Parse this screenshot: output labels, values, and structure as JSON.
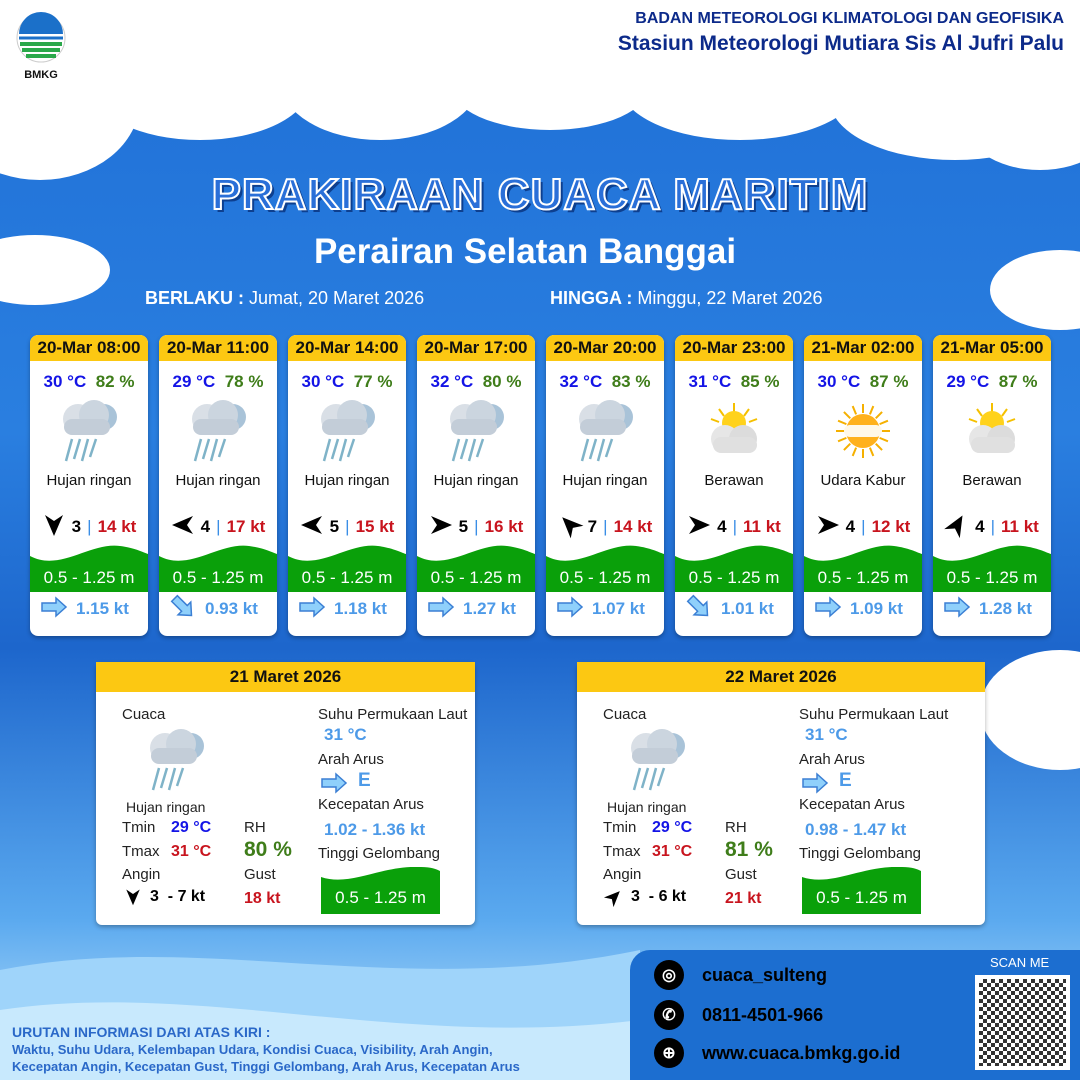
{
  "org": {
    "logo_text": "BMKG",
    "line1": "BADAN METEOROLOGI KLIMATOLOGI DAN GEOFISIKA",
    "line2": "Stasiun Meteorologi Mutiara Sis Al Jufri Palu"
  },
  "title": "PRAKIRAAN CUACA MARITIM",
  "subtitle": "Perairan Selatan Banggai",
  "validity": {
    "from_label": "BERLAKU :",
    "from": "Jumat, 20 Maret 2026",
    "to_label": "HINGGA :",
    "to": "Minggu, 22 Maret 2026"
  },
  "forecasts": [
    {
      "time": "20-Mar 08:00",
      "temp": "30 °C",
      "rh": "82 %",
      "icon": "rain-icon",
      "cond": "Hujan ringan",
      "wind_dir_deg": 180,
      "wind": "3",
      "gust": "14 kt",
      "wave": "0.5 - 1.25 m",
      "cur_dir_deg": 90,
      "cur": "1.15 kt"
    },
    {
      "time": "20-Mar 11:00",
      "temp": "29 °C",
      "rh": "78 %",
      "icon": "rain-icon",
      "cond": "Hujan ringan",
      "wind_dir_deg": 270,
      "wind": "4",
      "gust": "17 kt",
      "wave": "0.5 - 1.25 m",
      "cur_dir_deg": 135,
      "cur": "0.93 kt"
    },
    {
      "time": "20-Mar 14:00",
      "temp": "30 °C",
      "rh": "77 %",
      "icon": "rain-icon",
      "cond": "Hujan ringan",
      "wind_dir_deg": 270,
      "wind": "5",
      "gust": "15 kt",
      "wave": "0.5 - 1.25 m",
      "cur_dir_deg": 90,
      "cur": "1.18 kt"
    },
    {
      "time": "20-Mar 17:00",
      "temp": "32 °C",
      "rh": "80 %",
      "icon": "rain-icon",
      "cond": "Hujan ringan",
      "wind_dir_deg": 90,
      "wind": "5",
      "gust": "16 kt",
      "wave": "0.5 - 1.25 m",
      "cur_dir_deg": 90,
      "cur": "1.27 kt"
    },
    {
      "time": "20-Mar 20:00",
      "temp": "32 °C",
      "rh": "83 %",
      "icon": "rain-icon",
      "cond": "Hujan ringan",
      "wind_dir_deg": 315,
      "wind": "7",
      "gust": "14 kt",
      "wave": "0.5 - 1.25 m",
      "cur_dir_deg": 90,
      "cur": "1.07 kt"
    },
    {
      "time": "20-Mar 23:00",
      "temp": "31 °C",
      "rh": "85 %",
      "icon": "cloudy-icon",
      "cond": "Berawan",
      "wind_dir_deg": 90,
      "wind": "4",
      "gust": "11 kt",
      "wave": "0.5 - 1.25 m",
      "cur_dir_deg": 135,
      "cur": "1.01 kt"
    },
    {
      "time": "21-Mar 02:00",
      "temp": "30 °C",
      "rh": "87 %",
      "icon": "haze-icon",
      "cond": "Udara Kabur",
      "wind_dir_deg": 90,
      "wind": "4",
      "gust": "12 kt",
      "wave": "0.5 - 1.25 m",
      "cur_dir_deg": 90,
      "cur": "1.09 kt"
    },
    {
      "time": "21-Mar 05:00",
      "temp": "29 °C",
      "rh": "87 %",
      "icon": "cloudy-icon",
      "cond": "Berawan",
      "wind_dir_deg": 30,
      "wind": "4",
      "gust": "11 kt",
      "wave": "0.5 - 1.25 m",
      "cur_dir_deg": 90,
      "cur": "1.28 kt"
    }
  ],
  "labels": {
    "cuaca": "Cuaca",
    "sst": "Suhu Permukaan Laut",
    "arah_arus": "Arah Arus",
    "kec_arus": "Kecepatan Arus",
    "tinggi": "Tinggi Gelombang",
    "tmin": "Tmin",
    "tmax": "Tmax",
    "rh": "RH",
    "angin": "Angin",
    "gust": "Gust"
  },
  "days": [
    {
      "date": "21 Maret 2026",
      "cond": "Hujan ringan",
      "tmin": "29 °C",
      "tmax": "31 °C",
      "rh": "80 %",
      "wind_dir_deg": 180,
      "wind": "3  - 7 kt",
      "gust": "18 kt",
      "sst": "31 °C",
      "cur_dir": "E",
      "cur_speed": "1.02 - 1.36 kt",
      "wave": "0.5 - 1.25 m"
    },
    {
      "date": "22 Maret 2026",
      "cond": "Hujan ringan",
      "tmin": "29 °C",
      "tmax": "31 °C",
      "rh": "81 %",
      "wind_dir_deg": 45,
      "wind": "3  - 6 kt",
      "gust": "21 kt",
      "sst": "31 °C",
      "cur_dir": "E",
      "cur_speed": "0.98 - 1.47 kt",
      "wave": "0.5 - 1.25 m"
    }
  ],
  "footer": {
    "instagram": "cuaca_sulteng",
    "phone": "0811-4501-966",
    "web": "www.cuaca.bmkg.go.id",
    "scan": "SCAN ME",
    "note_title": "URUTAN INFORMASI DARI ATAS KIRI :",
    "note_1": "Waktu, Suhu Udara, Kelembapan Udara, Kondisi Cuaca, Visibility, Arah Angin,",
    "note_2": "Kecepatan Angin, Kecepatan Gust, Tinggi Gelombang, Arah Arus, Kecepatan Arus"
  },
  "colors": {
    "header": "#fcc812",
    "wave": "#0aa00a",
    "temp": "#1414e6",
    "rh": "#3f7d1a",
    "gust": "#c8141e",
    "current": "#4d9ae8"
  }
}
